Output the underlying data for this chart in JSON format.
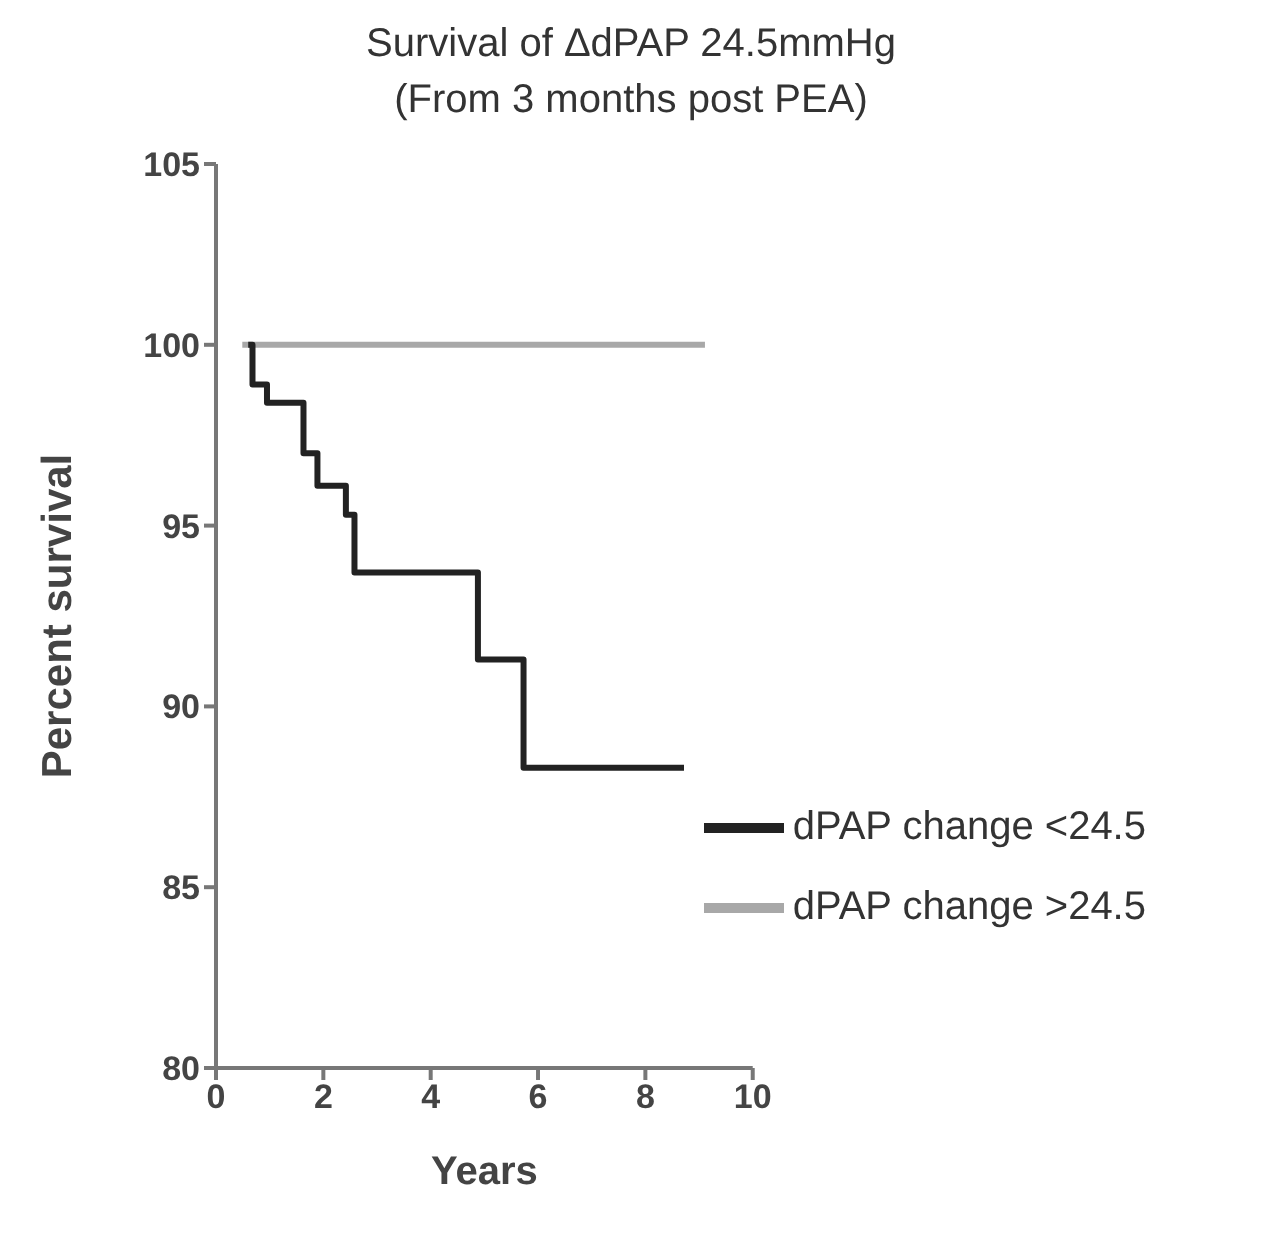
{
  "chart_data": {
    "type": "step",
    "title": "Survival of ΔdPAP 24.5mmHg",
    "subtitle": "(From 3 months post PEA)",
    "xlabel": "Years",
    "ylabel": "Percent survival",
    "xlim": [
      0,
      10
    ],
    "xticks": [
      0,
      2,
      4,
      6,
      8,
      10
    ],
    "ylim": [
      80,
      105
    ],
    "yticks": [
      80,
      85,
      90,
      95,
      100,
      105
    ],
    "grid": false,
    "legend": "bottom right",
    "marker": "none",
    "line_style": "solid",
    "series": [
      {
        "name": "dPAP change >24.5",
        "color": "#a8a8a8",
        "x": [
          0.49,
          9.11
        ],
        "values": [
          100,
          100
        ]
      },
      {
        "name": "dPAP change <24.5",
        "color": "#222222",
        "x": [
          0.6,
          0.68,
          0.95,
          1.63,
          1.89,
          2.42,
          2.58,
          4.88,
          5.73,
          8.72
        ],
        "values": [
          100,
          98.9,
          98.4,
          97.0,
          96.1,
          95.3,
          93.7,
          91.3,
          88.3,
          88.3
        ]
      }
    ]
  }
}
